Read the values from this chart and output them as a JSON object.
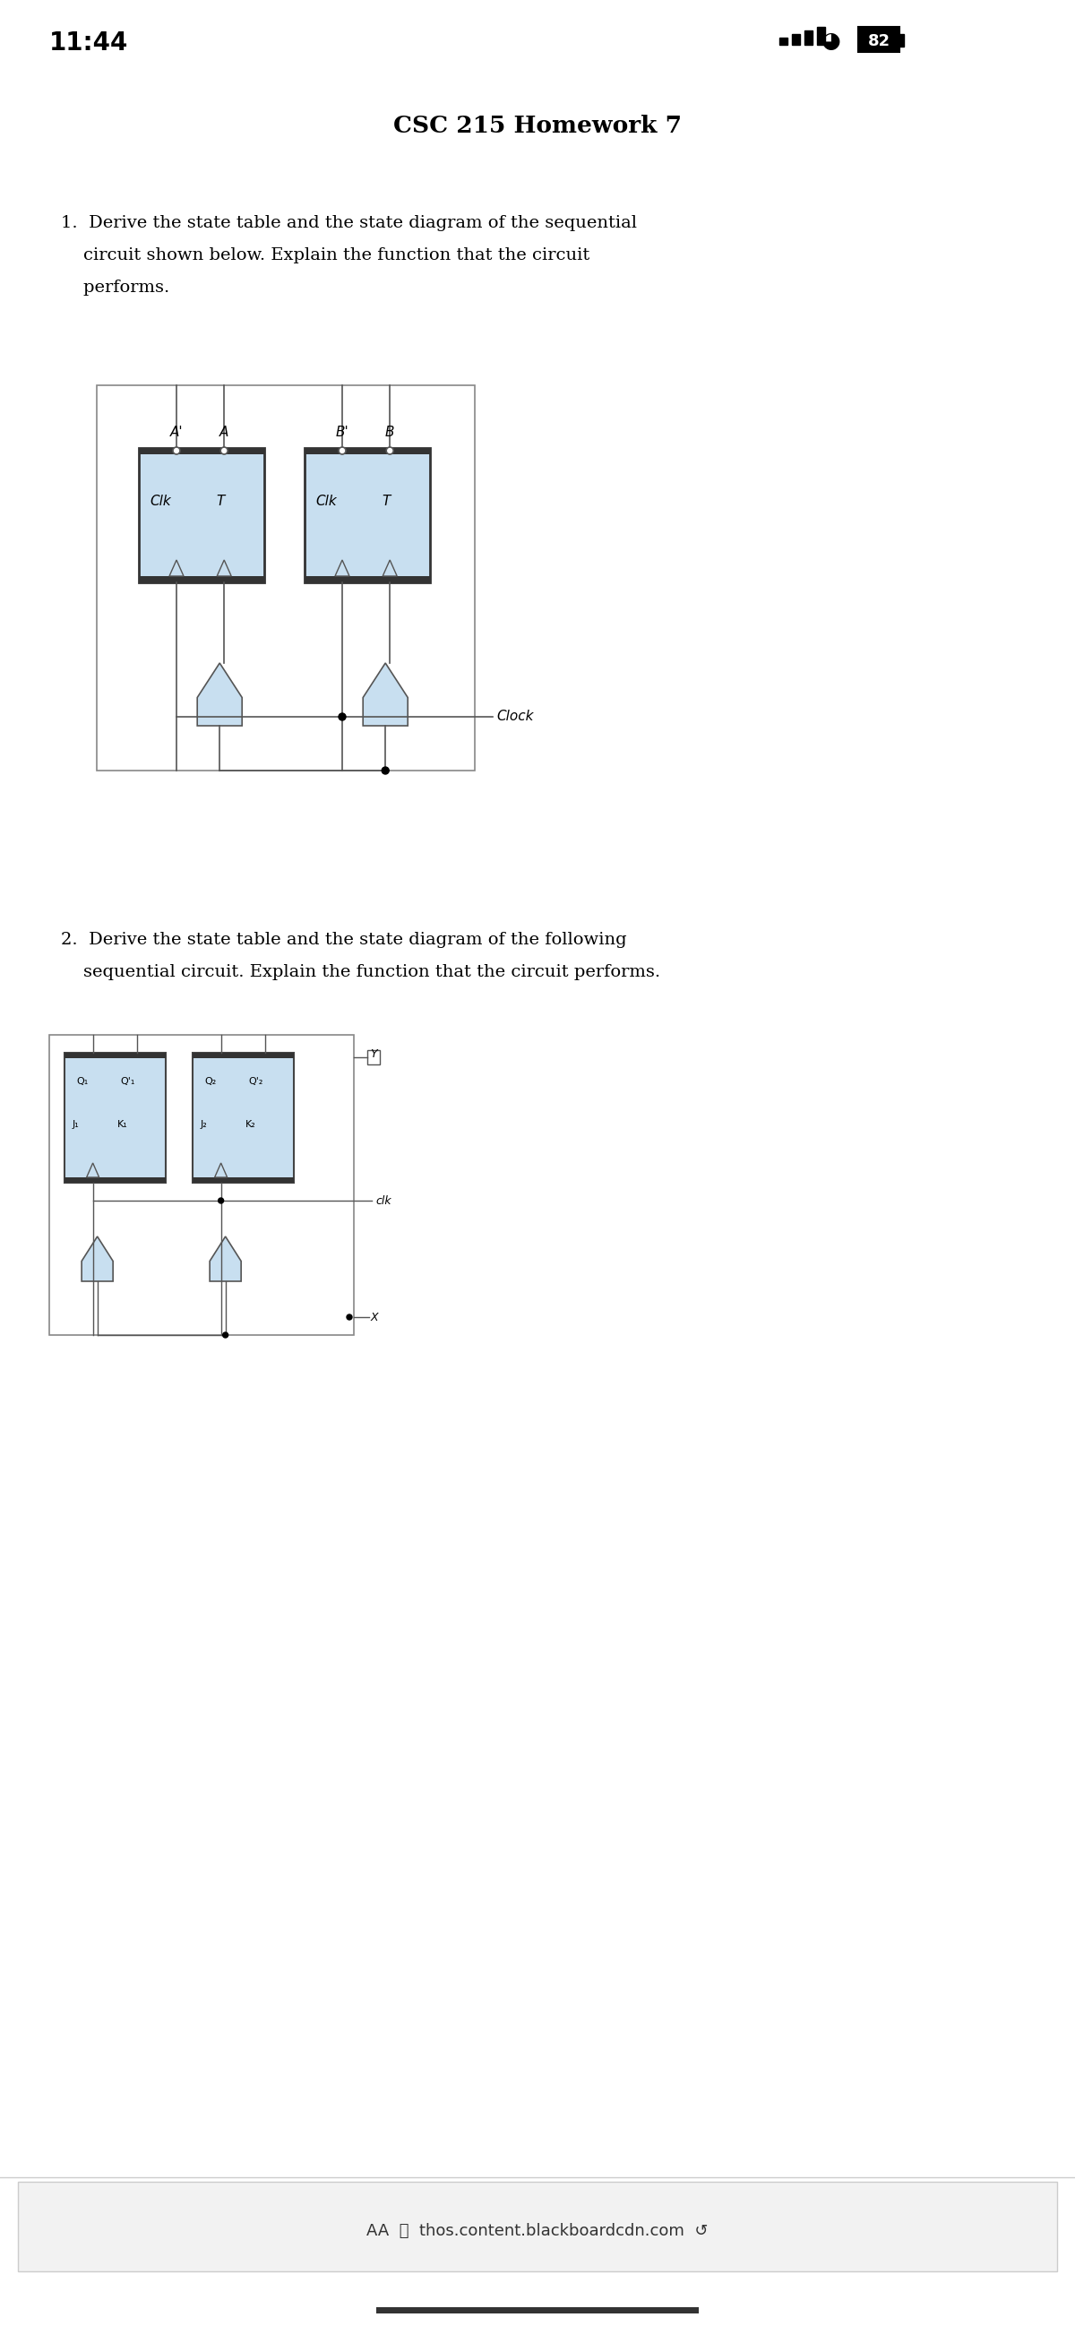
{
  "title": "CSC 215 Homework 7",
  "time": "11:44",
  "battery": "82",
  "bg_color": "#ffffff",
  "flip_ff_color": "#c8dff0",
  "flip_ff_border": "#555555",
  "line_color": "#555555",
  "q1_lines": [
    "1.  Derive the state table and the state diagram of the sequential",
    "    circuit shown below. Explain the function that the circuit",
    "    performs."
  ],
  "q2_lines": [
    "2.  Derive the state table and the state diagram of the following",
    "    sequential circuit. Explain the function that the circuit performs."
  ]
}
